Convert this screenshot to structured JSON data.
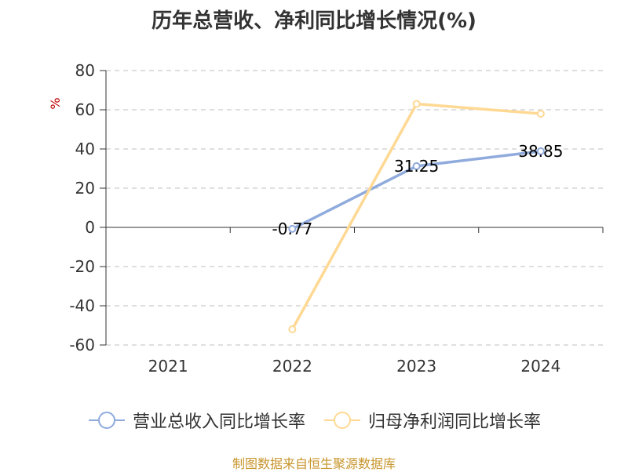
{
  "title": "历年总营收、净利同比增长情况(%)",
  "source": "制图数据来自恒生聚源数据库",
  "colors": {
    "revenue": "#8faadc",
    "profit": "#ffd994",
    "ylabel": "#c00000",
    "grid": "#cccccc",
    "axis": "#333333"
  },
  "chart_data": {
    "type": "line",
    "title": "历年总营收、净利同比增长情况(%)",
    "ylabel": "%",
    "categories": [
      "2021",
      "2022",
      "2023",
      "2024"
    ],
    "ylim": [
      -60,
      80
    ],
    "yticks": [
      80,
      60,
      40,
      20,
      0,
      -20,
      -40,
      -60
    ],
    "grid": true,
    "legend": "bottom",
    "series": [
      {
        "name": "营业总收入同比增长率",
        "values": [
          null,
          -0.77,
          31.25,
          38.85
        ],
        "labels": [
          "",
          "-0.77",
          "31.25",
          "38.85"
        ]
      },
      {
        "name": "归母净利润同比增长率",
        "values": [
          null,
          -52,
          63,
          58
        ]
      }
    ]
  }
}
